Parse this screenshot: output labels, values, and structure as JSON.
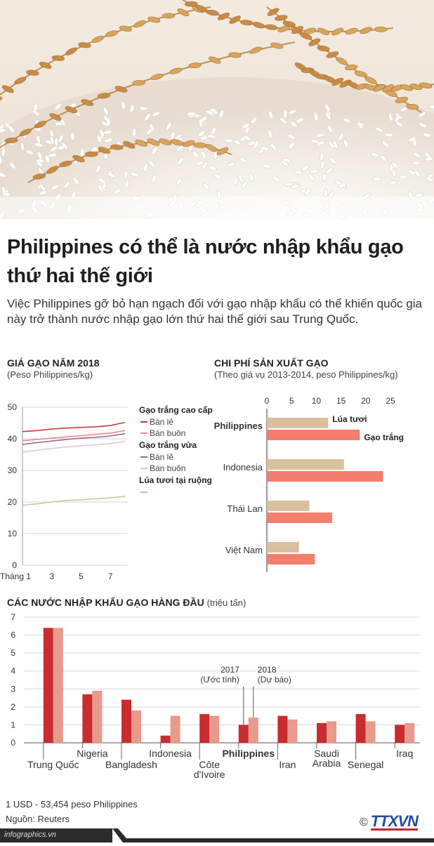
{
  "title": "Philippines có thể là nước nhập khẩu gạo thứ hai thế giới",
  "intro": "Việc Philippines gỡ bỏ hạn ngạch đối với gạo nhập khẩu có thể khiến quốc gia này trở thành nước nhập gạo lớn thứ hai thế giới sau Trung Quốc.",
  "price_section": {
    "title": "GIÁ GẠO NĂM 2018",
    "subtitle": "(Peso Philippines/kg)"
  },
  "cost_section": {
    "title": "CHI PHÍ SẢN XUẤT GẠO",
    "subtitle": "(Theo giá vụ 2013-2014, peso Philippines/kg)"
  },
  "import_section": {
    "title": "CÁC NƯỚC NHẬP KHẨU GẠO HÀNG ĐẦU",
    "unit": "(triệu tấn)"
  },
  "footer": {
    "exchange": "1 USD - 53,454 peso Philippines",
    "source": "Nguồn: Reuters",
    "site": "infographics.vn",
    "brand": "TTXVN",
    "copyright": "©"
  },
  "colors": {
    "red_dark": "#c8383f",
    "red_light": "#ef8a80",
    "purple": "#9a6a8e",
    "pink_light": "#e6c6d6",
    "tan": "#d6c29c",
    "import_dark": "#c92b2f",
    "import_light": "#e89a8c",
    "cost_tan": "#d9c19e",
    "cost_red": "#f47e6c",
    "brand_red": "#d32027",
    "brand_blue": "#1f4e9c"
  },
  "chart_data": [
    {
      "type": "line",
      "title": "GIÁ GẠO NĂM 2018",
      "subtitle": "(Peso Philippines/kg)",
      "x": [
        1,
        2,
        3,
        4,
        5,
        6,
        7,
        8
      ],
      "x_tick_labels": [
        "Tháng 1",
        "3",
        "5",
        "7"
      ],
      "x_tick_values": [
        1,
        3,
        5,
        7
      ],
      "ylim": [
        0,
        50
      ],
      "y_ticks": [
        0,
        10,
        20,
        30,
        40,
        50
      ],
      "grid": "horizontal",
      "legend_groups": [
        {
          "label": "Gạo trắng cao cấp",
          "items": [
            "Bán lẻ",
            "Bán buôn"
          ]
        },
        {
          "label": "Gạo trắng vừa",
          "items": [
            "Bán lẻ",
            "Bán buôn"
          ]
        },
        {
          "label": "Lúa tươi tại ruộng",
          "items": [
            ""
          ]
        }
      ],
      "series": [
        {
          "name": "Bán lẻ",
          "group": "Gạo trắng cao cấp",
          "color": "#c8383f",
          "values": [
            42.3,
            42.6,
            43.1,
            43.4,
            43.6,
            43.8,
            44.2,
            45.2
          ]
        },
        {
          "name": "Bán buôn",
          "group": "Gạo trắng cao cấp",
          "color": "#ef8a80",
          "values": [
            39.4,
            39.8,
            40.2,
            40.6,
            41.0,
            41.4,
            41.8,
            42.6
          ]
        },
        {
          "name": "Bán lẻ",
          "group": "Gạo trắng vừa",
          "color": "#9a6a8e",
          "values": [
            38.2,
            38.8,
            39.3,
            39.8,
            40.2,
            40.5,
            40.9,
            41.6
          ]
        },
        {
          "name": "Bán buôn",
          "group": "Gạo trắng vừa",
          "color": "#e6c6d6",
          "values": [
            35.8,
            36.4,
            36.9,
            37.4,
            37.8,
            38.1,
            38.5,
            39.1
          ]
        },
        {
          "name": "",
          "group": "Lúa tươi tại ruộng",
          "color": "#d6c29c",
          "values": [
            19.0,
            19.4,
            20.0,
            20.5,
            20.7,
            21.0,
            21.3,
            21.8
          ]
        }
      ]
    },
    {
      "type": "bar",
      "orientation": "horizontal",
      "title": "CHI PHÍ SẢN XUẤT GẠO",
      "subtitle": "(Theo giá vụ 2013-2014, peso Philippines/kg)",
      "categories": [
        "Philippines",
        "Indonesia",
        "Thái Lan",
        "Việt Nam"
      ],
      "xlim": [
        0,
        25
      ],
      "x_ticks": [
        0,
        5,
        10,
        15,
        20,
        25
      ],
      "series": [
        {
          "name": "Lúa tươi",
          "color": "#d9c19e",
          "values": [
            12.4,
            15.6,
            8.6,
            6.5
          ]
        },
        {
          "name": "Gạo trắng",
          "color": "#f47e6c",
          "values": [
            18.8,
            23.5,
            13.2,
            9.7
          ]
        }
      ]
    },
    {
      "type": "bar",
      "title": "CÁC NƯỚC NHẬP KHẨU GẠO HÀNG ĐẦU",
      "unit": "(triệu tấn)",
      "categories": [
        "Trung Quốc",
        "Nigeria",
        "Bangladesh",
        "Indonesia",
        "Côte d'Ivoire",
        "Philippines",
        "Iran",
        "Saudi Arabia",
        "Senegal",
        "Iraq"
      ],
      "category_labels": [
        "Trung Quốc",
        "Nigeria",
        "Bangladesh",
        "Indonesia",
        "Côte\nd'Ivoire",
        "Philippines",
        "Iran",
        "Saudi\nArabia",
        "Senegal",
        "Iraq"
      ],
      "ylim": [
        0,
        7
      ],
      "y_ticks": [
        0,
        1,
        2,
        3,
        4,
        5,
        6,
        7
      ],
      "series": [
        {
          "name": "2017\n(Ước tính)",
          "color": "#c92b2f",
          "values": [
            6.4,
            2.7,
            2.4,
            0.4,
            1.6,
            1.0,
            1.5,
            1.1,
            1.6,
            1.0
          ]
        },
        {
          "name": "2018\n(Dự báo)",
          "color": "#e89a8c",
          "values": [
            6.4,
            2.9,
            1.8,
            1.5,
            1.5,
            1.4,
            1.3,
            1.2,
            1.2,
            1.1
          ]
        }
      ]
    }
  ]
}
